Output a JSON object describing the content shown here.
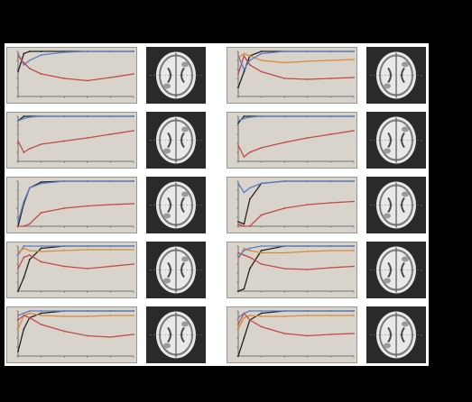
{
  "figure": {
    "background": "#000000",
    "panel_background": "#ffffff",
    "plot_background": "#d8d4cc",
    "brain_background": "#2a2a2a",
    "colors": {
      "series_black": "#222222",
      "series_blue": "#5b7fc4",
      "series_red": "#c24a4a",
      "series_orange": "#d88a3a"
    }
  },
  "chart_data": [
    {
      "type": "line",
      "panel": "left-1",
      "x": [
        0,
        5,
        10,
        20,
        40,
        60,
        80,
        100
      ],
      "series": [
        {
          "color": "series_black",
          "values": [
            0.55,
            0.95,
            1.0,
            1.0,
            1.0,
            1.0,
            1.0,
            1.0
          ]
        },
        {
          "color": "series_blue",
          "values": [
            0.95,
            0.7,
            0.8,
            0.92,
            0.98,
            1.0,
            1.0,
            1.0
          ]
        },
        {
          "color": "series_red",
          "values": [
            0.9,
            0.75,
            0.62,
            0.5,
            0.4,
            0.35,
            0.42,
            0.5
          ]
        }
      ]
    },
    {
      "type": "line",
      "panel": "right-1",
      "x": [
        0,
        5,
        10,
        20,
        40,
        60,
        80,
        100
      ],
      "series": [
        {
          "color": "series_black",
          "values": [
            0.2,
            0.55,
            0.9,
            1.0,
            1.0,
            1.0,
            1.0,
            1.0
          ]
        },
        {
          "color": "series_orange",
          "values": [
            0.85,
            0.95,
            0.9,
            0.8,
            0.75,
            0.78,
            0.8,
            0.82
          ]
        },
        {
          "color": "series_red",
          "values": [
            0.5,
            0.9,
            0.7,
            0.55,
            0.4,
            0.38,
            0.4,
            0.42
          ]
        },
        {
          "color": "series_blue",
          "values": [
            0.9,
            0.6,
            0.8,
            0.95,
            1.0,
            1.0,
            1.0,
            1.0
          ]
        }
      ]
    },
    {
      "type": "line",
      "panel": "left-2",
      "x": [
        0,
        5,
        10,
        20,
        40,
        60,
        80,
        100
      ],
      "series": [
        {
          "color": "series_black",
          "values": [
            0.9,
            1.0,
            1.0,
            1.0,
            1.0,
            1.0,
            1.0,
            1.0
          ]
        },
        {
          "color": "series_blue",
          "values": [
            0.9,
            0.95,
            0.98,
            1.0,
            1.0,
            1.0,
            1.0,
            1.0
          ]
        },
        {
          "color": "series_red",
          "values": [
            0.45,
            0.2,
            0.28,
            0.38,
            0.45,
            0.52,
            0.6,
            0.68
          ]
        }
      ]
    },
    {
      "type": "line",
      "panel": "right-2",
      "x": [
        0,
        5,
        10,
        20,
        40,
        60,
        80,
        100
      ],
      "series": [
        {
          "color": "series_black",
          "values": [
            0.85,
            1.0,
            1.0,
            1.0,
            1.0,
            1.0,
            1.0,
            1.0
          ]
        },
        {
          "color": "series_blue",
          "values": [
            0.9,
            0.95,
            0.98,
            1.0,
            1.0,
            1.0,
            1.0,
            1.0
          ]
        },
        {
          "color": "series_red",
          "values": [
            0.35,
            0.1,
            0.2,
            0.3,
            0.42,
            0.52,
            0.6,
            0.68
          ]
        }
      ]
    },
    {
      "type": "line",
      "panel": "left-3",
      "x": [
        0,
        5,
        10,
        20,
        40,
        60,
        80,
        100
      ],
      "series": [
        {
          "color": "series_black",
          "values": [
            0.0,
            0.5,
            0.85,
            0.98,
            1.0,
            1.0,
            1.0,
            1.0
          ]
        },
        {
          "color": "series_blue",
          "values": [
            0.1,
            0.55,
            0.85,
            0.95,
            1.0,
            1.0,
            1.0,
            1.0
          ]
        },
        {
          "color": "series_red",
          "values": [
            0.0,
            0.0,
            0.05,
            0.3,
            0.4,
            0.45,
            0.48,
            0.5
          ]
        }
      ]
    },
    {
      "type": "line",
      "panel": "right-3",
      "x": [
        0,
        5,
        10,
        20,
        40,
        60,
        80,
        100
      ],
      "series": [
        {
          "color": "series_black",
          "values": [
            0.1,
            0.05,
            0.6,
            0.95,
            1.0,
            1.0,
            1.0,
            1.0
          ]
        },
        {
          "color": "series_blue",
          "values": [
            0.95,
            0.75,
            0.85,
            0.95,
            1.0,
            1.0,
            1.0,
            1.0
          ]
        },
        {
          "color": "series_red",
          "values": [
            0.05,
            0.0,
            0.0,
            0.25,
            0.4,
            0.48,
            0.52,
            0.55
          ]
        }
      ]
    },
    {
      "type": "line",
      "panel": "left-4",
      "x": [
        0,
        5,
        10,
        20,
        40,
        60,
        80,
        100
      ],
      "series": [
        {
          "color": "series_black",
          "values": [
            0.0,
            0.3,
            0.7,
            0.95,
            1.0,
            1.0,
            1.0,
            1.0
          ]
        },
        {
          "color": "series_blue",
          "values": [
            0.8,
            1.0,
            1.0,
            1.0,
            1.0,
            1.0,
            1.0,
            1.0
          ]
        },
        {
          "color": "series_red",
          "values": [
            0.5,
            0.75,
            0.8,
            0.65,
            0.55,
            0.5,
            0.55,
            0.6
          ]
        },
        {
          "color": "series_orange",
          "values": [
            0.85,
            0.95,
            0.9,
            0.88,
            0.9,
            0.92,
            0.92,
            0.92
          ]
        }
      ]
    },
    {
      "type": "line",
      "panel": "right-4",
      "x": [
        0,
        5,
        10,
        20,
        40,
        60,
        80,
        100
      ],
      "series": [
        {
          "color": "series_black",
          "values": [
            0.0,
            0.05,
            0.5,
            0.9,
            1.0,
            1.0,
            1.0,
            1.0
          ]
        },
        {
          "color": "series_orange",
          "values": [
            0.7,
            0.95,
            0.9,
            0.85,
            0.85,
            0.88,
            0.9,
            0.9
          ]
        },
        {
          "color": "series_red",
          "values": [
            0.85,
            0.8,
            0.75,
            0.6,
            0.5,
            0.48,
            0.52,
            0.55
          ]
        },
        {
          "color": "series_blue",
          "values": [
            0.75,
            0.9,
            0.95,
            1.0,
            1.0,
            1.0,
            1.0,
            1.0
          ]
        }
      ]
    },
    {
      "type": "line",
      "panel": "left-5",
      "x": [
        0,
        5,
        10,
        20,
        40,
        60,
        80,
        100
      ],
      "series": [
        {
          "color": "series_black",
          "values": [
            0.1,
            0.6,
            0.85,
            0.95,
            1.0,
            1.0,
            1.0,
            1.0
          ]
        },
        {
          "color": "series_orange",
          "values": [
            0.6,
            0.9,
            0.95,
            0.9,
            0.88,
            0.88,
            0.9,
            0.9
          ]
        },
        {
          "color": "series_red",
          "values": [
            0.8,
            0.9,
            0.85,
            0.7,
            0.55,
            0.45,
            0.42,
            0.48
          ]
        },
        {
          "color": "series_blue",
          "values": [
            0.9,
            0.95,
            1.0,
            1.0,
            1.0,
            1.0,
            1.0,
            1.0
          ]
        }
      ]
    },
    {
      "type": "line",
      "panel": "right-5",
      "x": [
        0,
        5,
        10,
        20,
        40,
        60,
        80,
        100
      ],
      "series": [
        {
          "color": "series_black",
          "values": [
            0.0,
            0.4,
            0.8,
            0.95,
            1.0,
            1.0,
            1.0,
            1.0
          ]
        },
        {
          "color": "series_orange",
          "values": [
            0.6,
            0.85,
            0.9,
            0.88,
            0.88,
            0.9,
            0.9,
            0.9
          ]
        },
        {
          "color": "series_red",
          "values": [
            0.7,
            0.95,
            0.8,
            0.65,
            0.5,
            0.45,
            0.48,
            0.5
          ]
        },
        {
          "color": "series_blue",
          "values": [
            0.85,
            0.95,
            1.0,
            1.0,
            1.0,
            1.0,
            1.0,
            1.0
          ]
        }
      ]
    }
  ]
}
